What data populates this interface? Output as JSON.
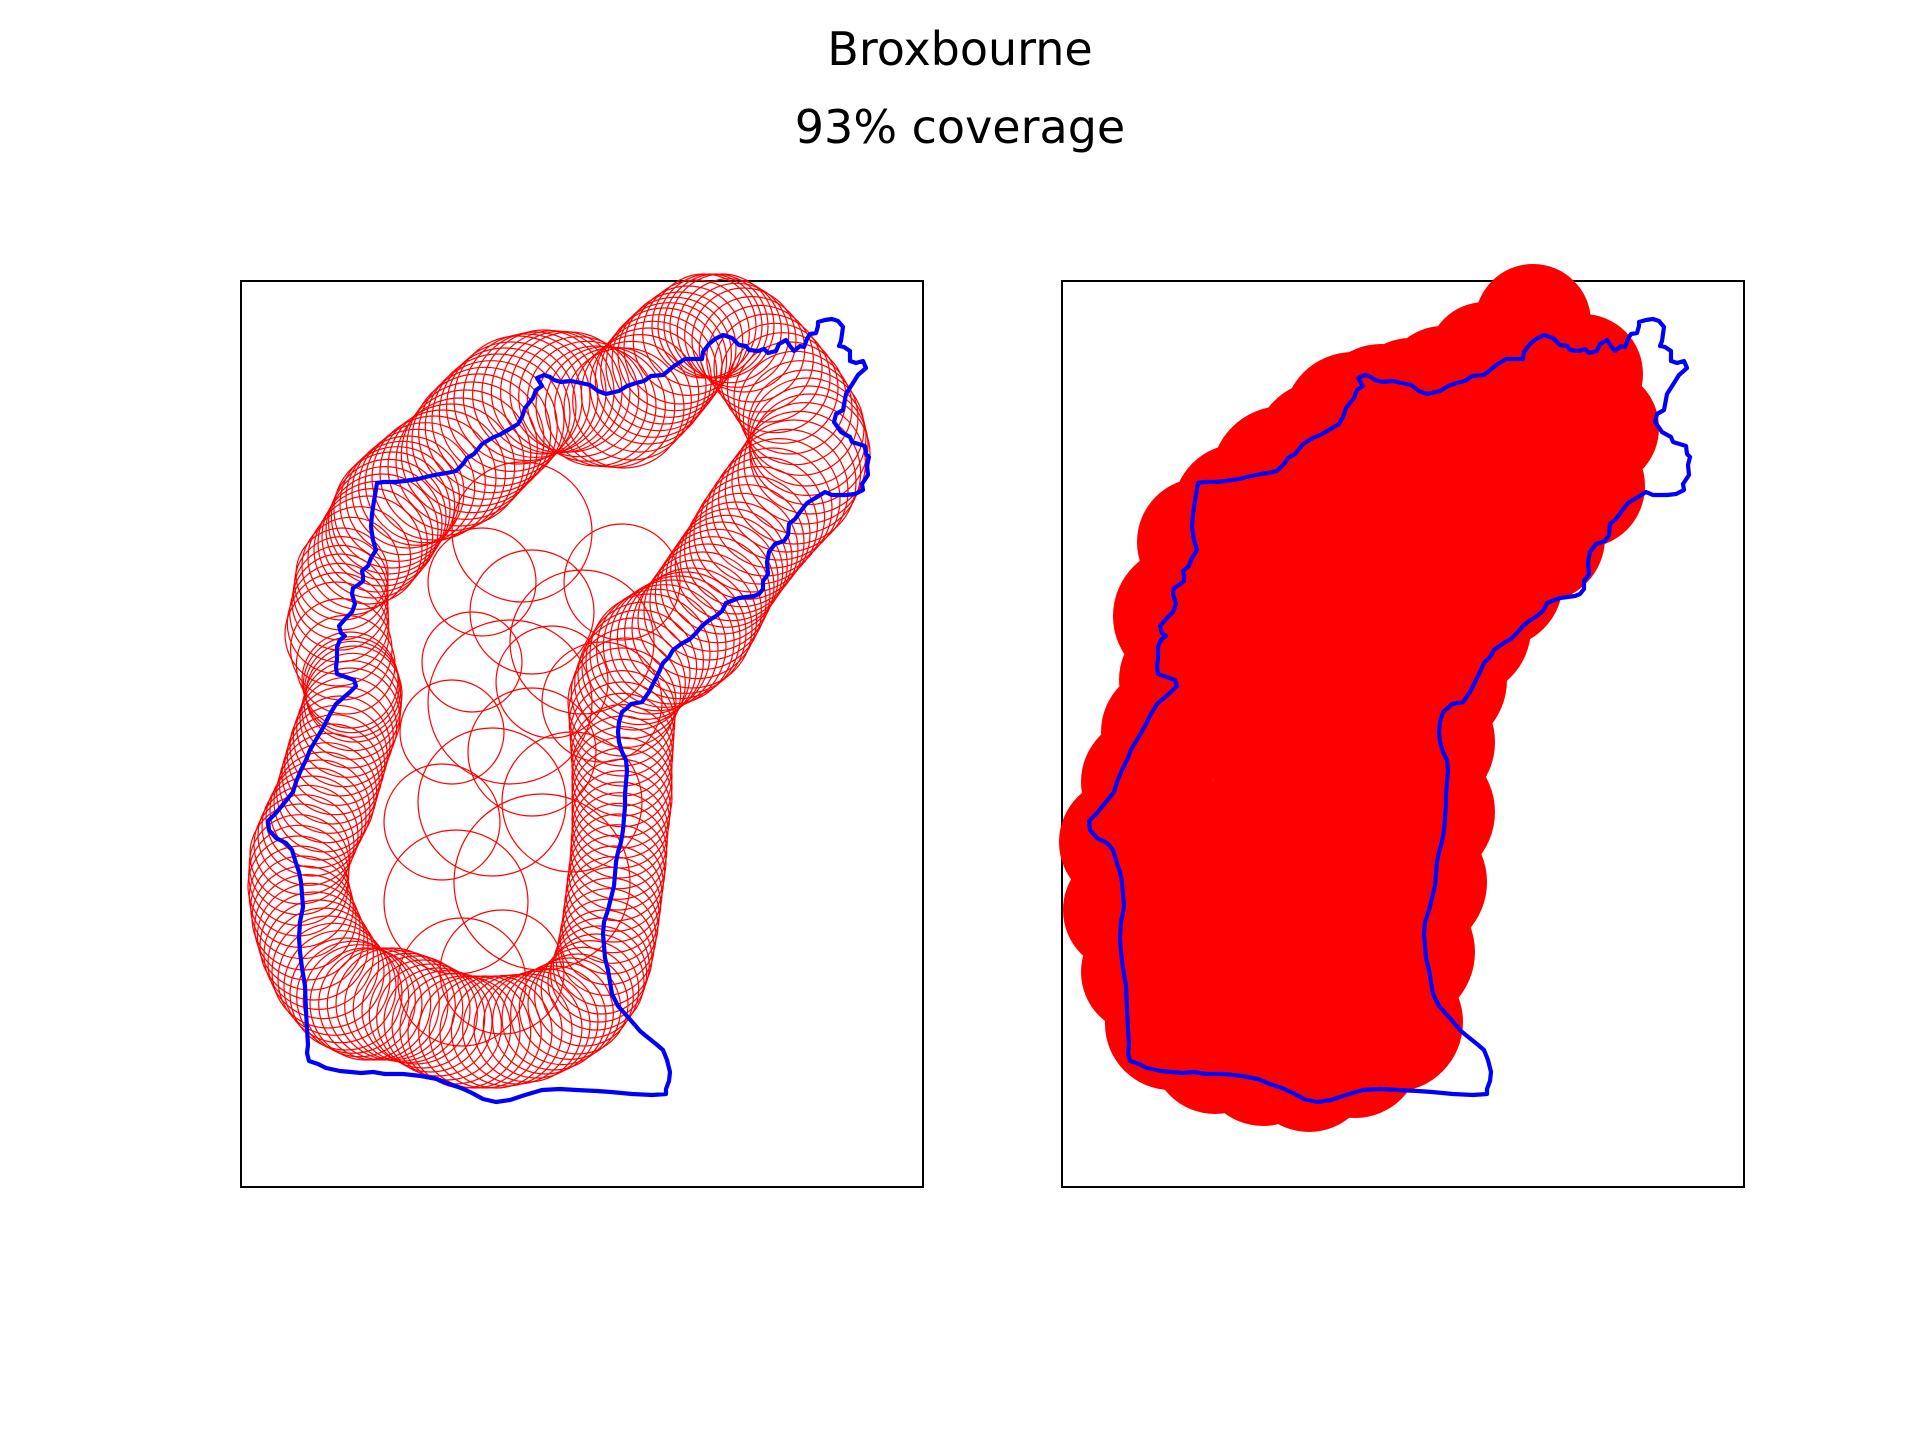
{
  "figure": {
    "title": "Broxbourne",
    "subtitle": "93% coverage",
    "boundary_color": "#0000ff",
    "coverage_color": "#ff0000",
    "panels": [
      {
        "name": "circle-outlines",
        "style": "outline"
      },
      {
        "name": "circle-union",
        "style": "filled"
      }
    ]
  }
}
